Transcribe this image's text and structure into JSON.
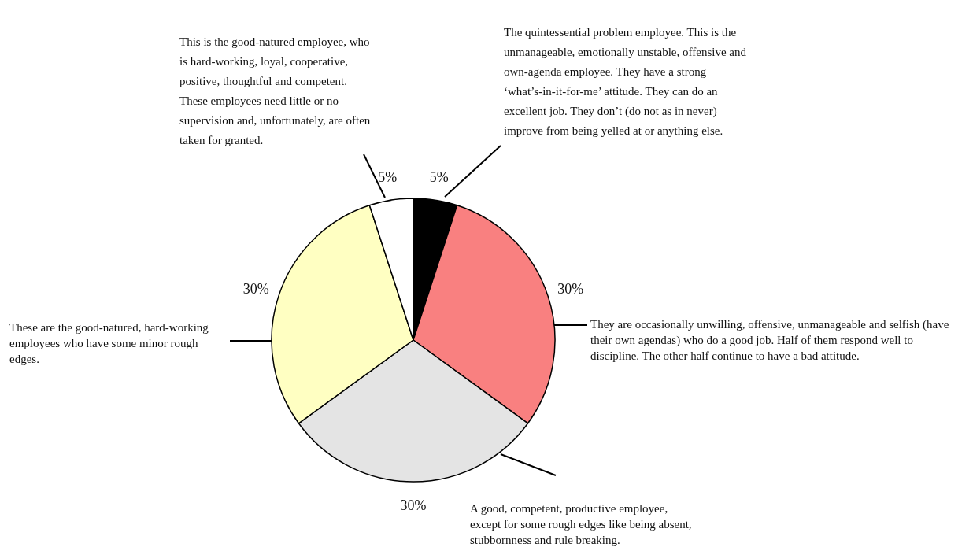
{
  "chart_data": {
    "type": "pie",
    "categories": [
      "The quintessential problem employee. This is the unmanageable, emotionally unstable, offensive and own-agenda employee. They have a strong ‘what’s-in-it-for-me’ attitude. They can do an excellent job. They don’t (do not as in never) improve from being yelled at or anything else.",
      "They are occasionally unwilling, offensive, unmanageable and selfish (have their own agendas) who do a good job. Half of them respond well to discipline. The other half continue to have a bad attitude.",
      "A good, competent, productive employee, except for some rough edges like being absent, stubbornness and rule breaking.",
      "These are the good-natured, hard-working employees who have some minor rough edges.",
      "This is the good-natured employee, who is hard-working, loyal, cooperative, positive, thoughtful and competent. These employees need little or no supervision and, unfortunately, are often taken for granted."
    ],
    "values": [
      5,
      30,
      30,
      30,
      5
    ],
    "colors": [
      "#000000",
      "#f98080",
      "#e4e4e4",
      "#ffffc2",
      "#ffffff"
    ],
    "value_labels": [
      "5%",
      "30%",
      "30%",
      "30%",
      "5%"
    ]
  }
}
